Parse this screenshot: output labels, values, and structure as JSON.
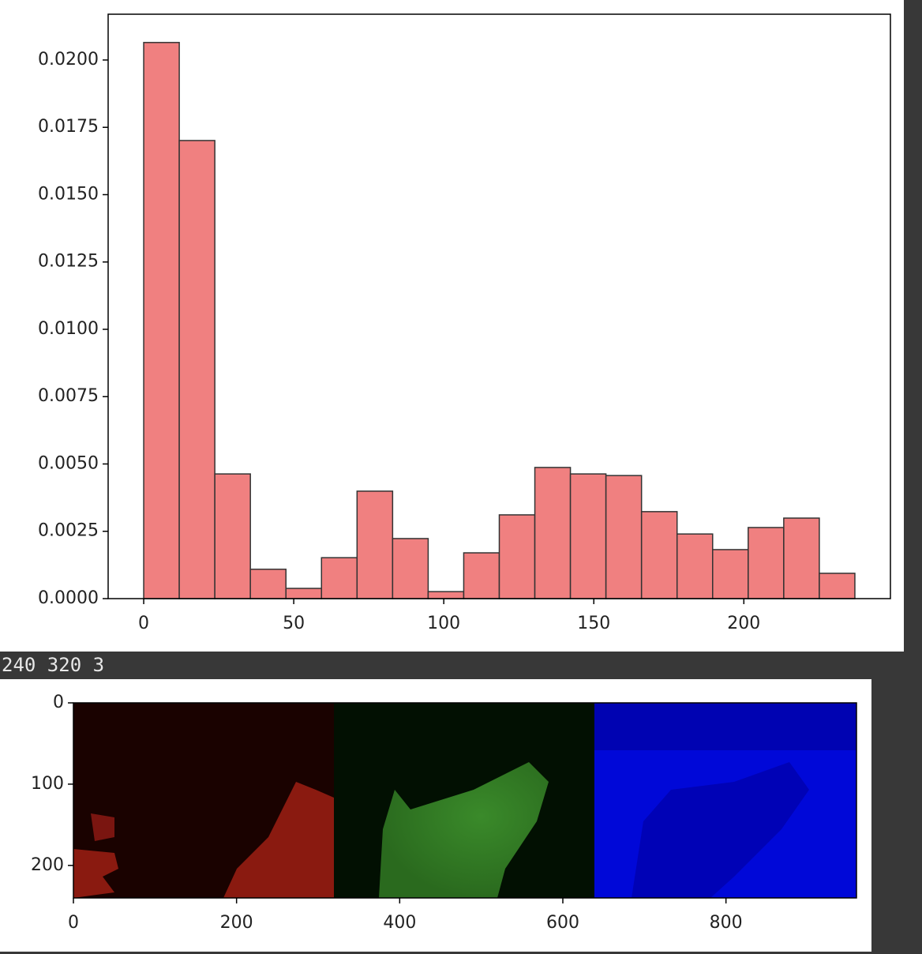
{
  "chart_data": [
    {
      "type": "histogram",
      "bins": [
        0,
        11.85,
        23.7,
        35.55,
        47.4,
        59.25,
        71.1,
        82.95,
        94.8,
        106.65,
        118.5,
        130.35,
        142.2,
        154.05,
        165.9,
        177.75,
        189.6,
        201.45,
        213.3,
        225.15,
        237
      ],
      "values": [
        0.02065,
        0.01701,
        0.00463,
        0.00109,
        0.00038,
        0.00152,
        0.00399,
        0.00223,
        0.00026,
        0.0017,
        0.00311,
        0.00487,
        0.00463,
        0.00457,
        0.00323,
        0.0024,
        0.00182,
        0.00264,
        0.00299,
        0.00094
      ],
      "color": "#f08080",
      "edgecolor": "#333333",
      "xlim": [
        -11.85,
        248.85
      ],
      "ylim": [
        0,
        0.0217
      ],
      "xticks": [
        0,
        50,
        100,
        150,
        200
      ],
      "yticks": [
        {
          "value": 0,
          "label": "0.0000"
        },
        {
          "value": 0.0025,
          "label": "0.0025"
        },
        {
          "value": 0.005,
          "label": "0.0050"
        },
        {
          "value": 0.0075,
          "label": "0.0075"
        },
        {
          "value": 0.01,
          "label": "0.0100"
        },
        {
          "value": 0.0125,
          "label": "0.0125"
        },
        {
          "value": 0.015,
          "label": "0.0150"
        },
        {
          "value": 0.0175,
          "label": "0.0175"
        },
        {
          "value": 0.02,
          "label": "0.0200"
        }
      ]
    },
    {
      "type": "image",
      "xlim": [
        0,
        960
      ],
      "ylim": [
        240,
        0
      ],
      "xticks": [
        0,
        200,
        400,
        600,
        800
      ],
      "yticks": [
        0,
        100,
        200
      ]
    }
  ],
  "output_text": "240 320 3"
}
